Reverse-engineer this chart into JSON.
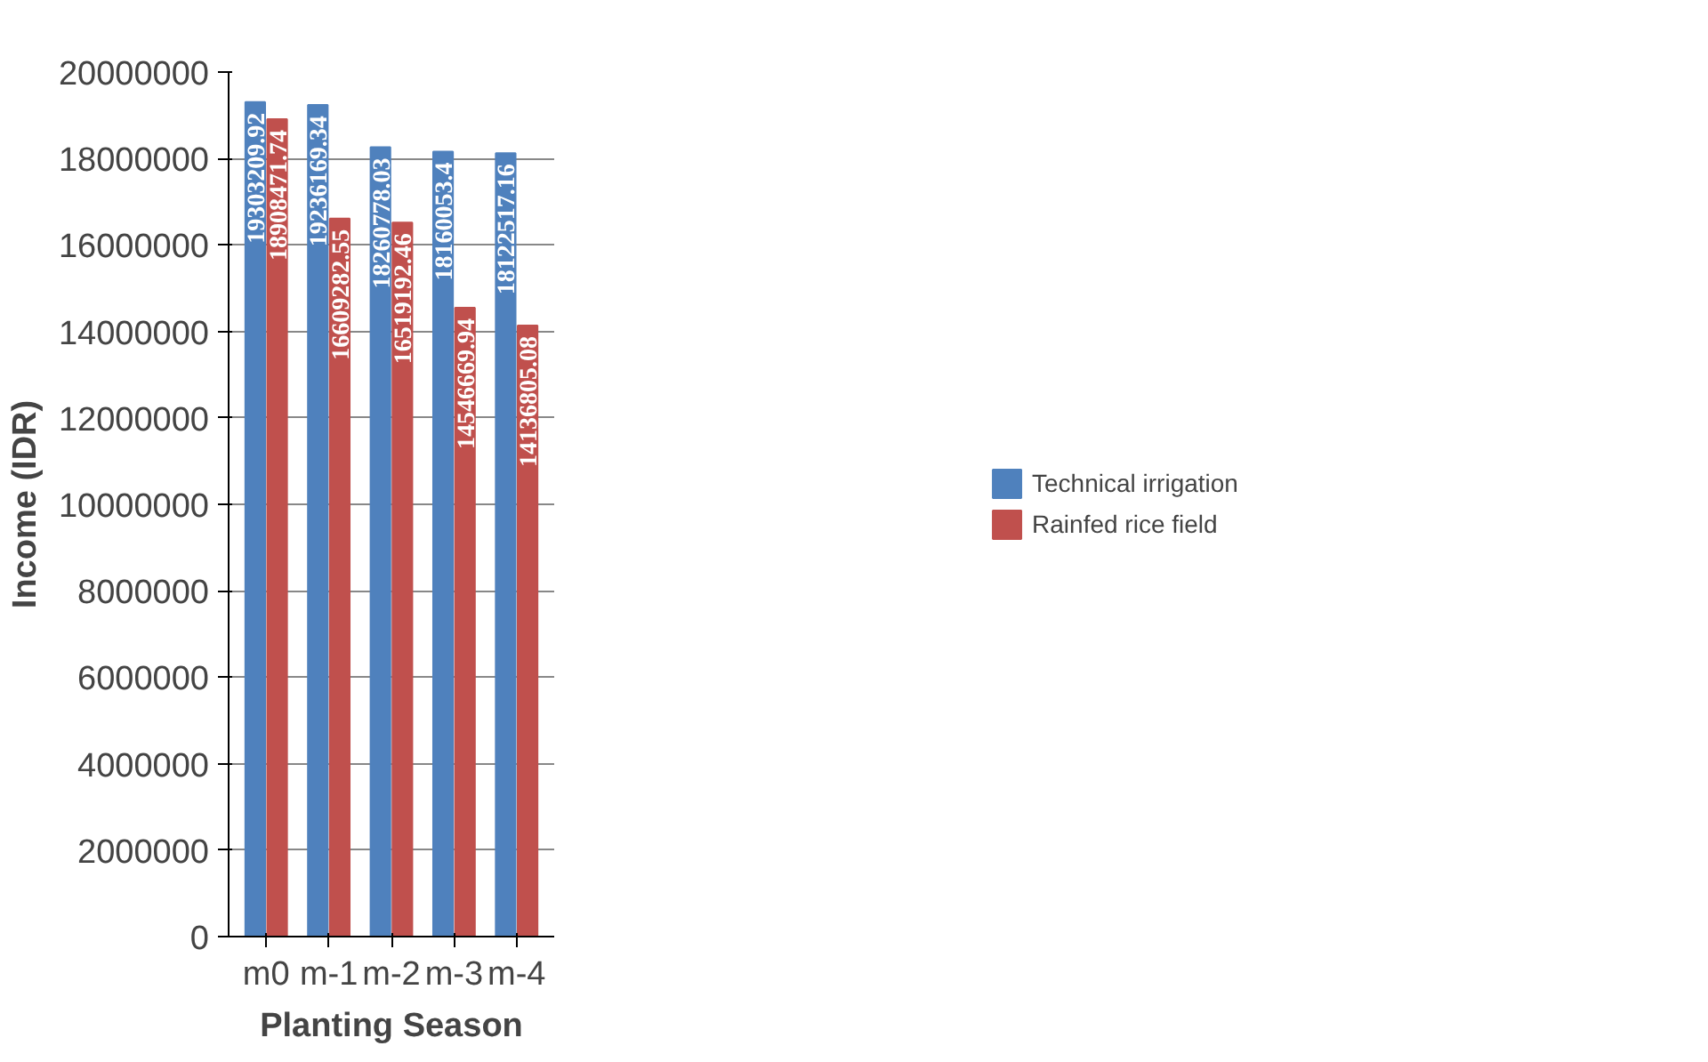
{
  "chart_data": {
    "type": "bar",
    "xlabel": "Planting Season",
    "ylabel": "Income (IDR)",
    "categories": [
      "m0",
      "m-1",
      "m-2",
      "m-3",
      "m-4"
    ],
    "series": [
      {
        "name": "Technical irrigation",
        "color": "#4f81bd",
        "values": [
          19303209.92,
          19236169.34,
          18260778.03,
          18160053.4,
          18122517.16
        ]
      },
      {
        "name": "Rainfed rice field",
        "color": "#c0504d",
        "values": [
          18908471.74,
          16609282.55,
          16519192.46,
          14546669.94,
          14136805.08
        ]
      }
    ],
    "ylim": [
      0,
      20000000
    ],
    "yticks": [
      0,
      2000000,
      4000000,
      6000000,
      8000000,
      10000000,
      12000000,
      14000000,
      16000000,
      18000000,
      20000000
    ],
    "grid": "y",
    "legend": "right",
    "data_labels": true
  }
}
